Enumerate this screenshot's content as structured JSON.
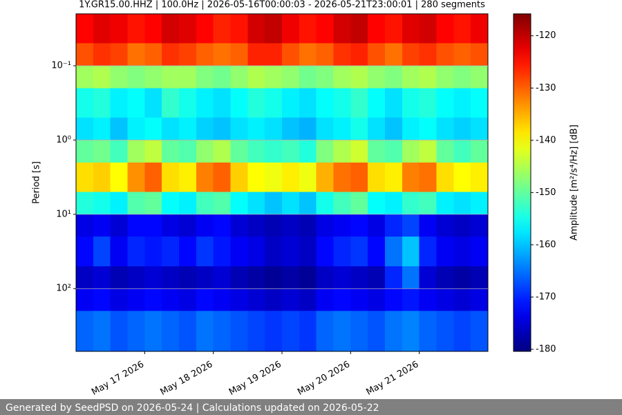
{
  "chart_data": {
    "type": "heatmap",
    "title": "1Y.GR15.00.HHZ | 100.0Hz | 2026-05-16T00:00:03 - 2026-05-21T23:00:01 | 280 segments",
    "ylabel": "Period [s]",
    "colorbar_label": "Amplitude [m²/s⁴/Hz] [dB]",
    "x": [
      "2026-05-16T00:00",
      "2026-05-16T06:00",
      "2026-05-16T12:00",
      "2026-05-16T18:00",
      "2026-05-17T00:00",
      "2026-05-17T06:00",
      "2026-05-17T12:00",
      "2026-05-17T18:00",
      "2026-05-18T00:00",
      "2026-05-18T06:00",
      "2026-05-18T12:00",
      "2026-05-18T18:00",
      "2026-05-19T00:00",
      "2026-05-19T06:00",
      "2026-05-19T12:00",
      "2026-05-19T18:00",
      "2026-05-20T00:00",
      "2026-05-20T06:00",
      "2026-05-20T12:00",
      "2026-05-20T18:00",
      "2026-05-21T00:00",
      "2026-05-21T06:00",
      "2026-05-21T12:00",
      "2026-05-21T18:00"
    ],
    "xlim": [
      "2026-05-16T00:00",
      "2026-05-22T00:00"
    ],
    "xticks": [
      {
        "value": "2026-05-17T00:00",
        "label": "May 17 2026"
      },
      {
        "value": "2026-05-18T00:00",
        "label": "May 18 2026"
      },
      {
        "value": "2026-05-19T00:00",
        "label": "May 19 2026"
      },
      {
        "value": "2026-05-20T00:00",
        "label": "May 20 2026"
      },
      {
        "value": "2026-05-21T00:00",
        "label": "May 21 2026"
      }
    ],
    "y_edges": [
      0.02,
      0.05,
      0.1,
      0.2,
      0.5,
      1,
      2,
      5,
      10,
      20,
      50,
      100,
      200,
      700
    ],
    "ylim": [
      0.02,
      700
    ],
    "y_log": true,
    "y_inverted": true,
    "yticks": [
      {
        "value": 0.1,
        "label": "10⁻¹"
      },
      {
        "value": 1,
        "label": "10⁰"
      },
      {
        "value": 10,
        "label": "10¹"
      },
      {
        "value": 100,
        "label": "10²"
      }
    ],
    "grid": true,
    "colormap": "jet",
    "clim": [
      -180.4,
      -115.8
    ],
    "cticks": [
      -180,
      -170,
      -160,
      -150,
      -140,
      -130,
      -120
    ],
    "z": [
      [
        -124,
        -122,
        -123,
        -125,
        -124,
        -121,
        -122,
        -124,
        -126,
        -125,
        -121,
        -120,
        -123,
        -125,
        -124,
        -121,
        -120,
        -124,
        -125,
        -122,
        -121,
        -124,
        -125,
        -123
      ],
      [
        -129,
        -127,
        -128,
        -131,
        -130,
        -127,
        -128,
        -130,
        -131,
        -130,
        -126,
        -126,
        -129,
        -131,
        -130,
        -127,
        -126,
        -129,
        -131,
        -128,
        -127,
        -129,
        -130,
        -129
      ],
      [
        -146,
        -145,
        -147,
        -148,
        -147,
        -146,
        -146,
        -148,
        -149,
        -147,
        -145,
        -146,
        -147,
        -149,
        -148,
        -146,
        -145,
        -147,
        -148,
        -146,
        -145,
        -147,
        -148,
        -147
      ],
      [
        -155,
        -154,
        -157,
        -156,
        -158,
        -153,
        -155,
        -157,
        -158,
        -156,
        -154,
        -155,
        -157,
        -158,
        -156,
        -155,
        -153,
        -156,
        -158,
        -155,
        -154,
        -156,
        -157,
        -156
      ],
      [
        -158,
        -157,
        -160,
        -157,
        -156,
        -158,
        -157,
        -159,
        -160,
        -158,
        -157,
        -158,
        -160,
        -161,
        -158,
        -157,
        -155,
        -158,
        -160,
        -157,
        -156,
        -158,
        -159,
        -158
      ],
      [
        -150,
        -149,
        -152,
        -146,
        -144,
        -150,
        -151,
        -147,
        -145,
        -150,
        -152,
        -153,
        -152,
        -154,
        -148,
        -145,
        -143,
        -150,
        -151,
        -146,
        -144,
        -150,
        -152,
        -150
      ],
      [
        -138,
        -137,
        -140,
        -133,
        -130,
        -138,
        -139,
        -132,
        -130,
        -137,
        -140,
        -141,
        -139,
        -141,
        -135,
        -131,
        -130,
        -138,
        -139,
        -132,
        -131,
        -138,
        -140,
        -139
      ],
      [
        -154,
        -155,
        -157,
        -151,
        -150,
        -156,
        -157,
        -152,
        -151,
        -156,
        -158,
        -160,
        -158,
        -160,
        -155,
        -152,
        -150,
        -156,
        -157,
        -153,
        -152,
        -157,
        -158,
        -157
      ],
      [
        -174,
        -173,
        -175,
        -172,
        -172,
        -174,
        -175,
        -173,
        -172,
        -175,
        -176,
        -177,
        -176,
        -177,
        -174,
        -173,
        -172,
        -174,
        -170,
        -168,
        -173,
        -175,
        -176,
        -175
      ],
      [
        -172,
        -168,
        -173,
        -170,
        -171,
        -170,
        -172,
        -169,
        -171,
        -173,
        -174,
        -176,
        -175,
        -176,
        -172,
        -170,
        -169,
        -172,
        -165,
        -160,
        -170,
        -173,
        -174,
        -173
      ],
      [
        -176,
        -175,
        -177,
        -176,
        -175,
        -176,
        -177,
        -176,
        -175,
        -177,
        -178,
        -179,
        -178,
        -179,
        -176,
        -175,
        -176,
        -177,
        -170,
        -165,
        -175,
        -177,
        -178,
        -177
      ],
      [
        -173,
        -172,
        -174,
        -173,
        -172,
        -173,
        -174,
        -172,
        -173,
        -174,
        -175,
        -176,
        -175,
        -176,
        -173,
        -172,
        -173,
        -174,
        -172,
        -171,
        -173,
        -174,
        -175,
        -174
      ],
      [
        -166,
        -165,
        -167,
        -166,
        -165,
        -166,
        -167,
        -165,
        -166,
        -167,
        -168,
        -169,
        -168,
        -169,
        -166,
        -165,
        -166,
        -167,
        -165,
        -164,
        -166,
        -167,
        -168,
        -167
      ]
    ]
  },
  "footer": "Generated by SeedPSD on 2026-05-24 | Calculations updated on 2026-05-22"
}
